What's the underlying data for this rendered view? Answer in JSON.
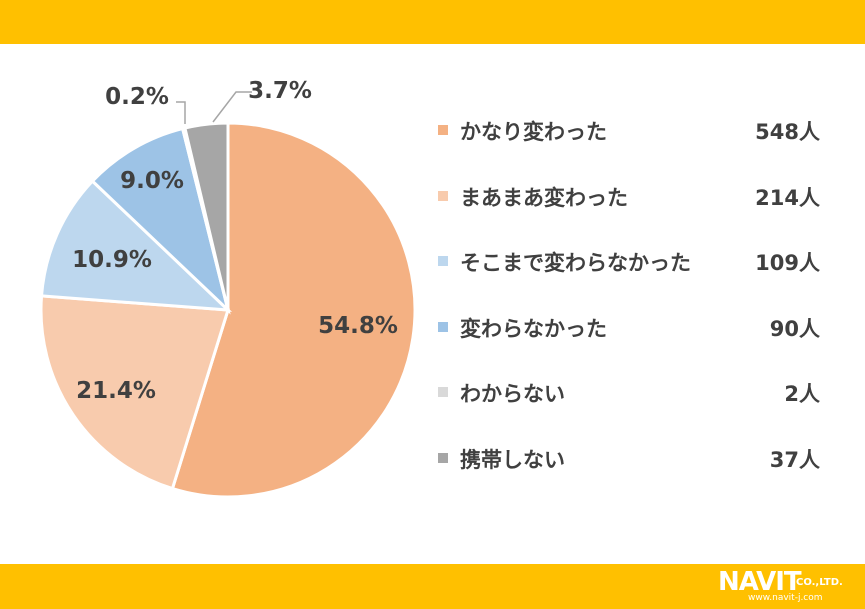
{
  "brand": {
    "logo_text": "NAVIT",
    "company_suffix": "CO.,LTD.",
    "url": "www.navit-j.com"
  },
  "colors": {
    "band": "#FFC000"
  },
  "chart_data": {
    "type": "pie",
    "title": "",
    "slices": [
      {
        "label": "かなり変わった",
        "value": 54.8,
        "percent_label": "54.8%",
        "count": "548人",
        "color": "#F4B183"
      },
      {
        "label": "まあまあ変わった",
        "value": 21.4,
        "percent_label": "21.4%",
        "count": "214人",
        "color": "#F8CBAD"
      },
      {
        "label": "そこまで変わらなかった",
        "value": 10.9,
        "percent_label": "10.9%",
        "count": "109人",
        "color": "#BDD7EE"
      },
      {
        "label": "変わらなかった",
        "value": 9.0,
        "percent_label": "9.0%",
        "count": "90人",
        "color": "#9DC3E6"
      },
      {
        "label": "わからない",
        "value": 0.2,
        "percent_label": "0.2%",
        "count": "2人",
        "color": "#D9D9D9"
      },
      {
        "label": "携帯しない",
        "value": 3.7,
        "percent_label": "3.7%",
        "count": "37人",
        "color": "#A6A6A6"
      }
    ],
    "legend_position": "right"
  }
}
